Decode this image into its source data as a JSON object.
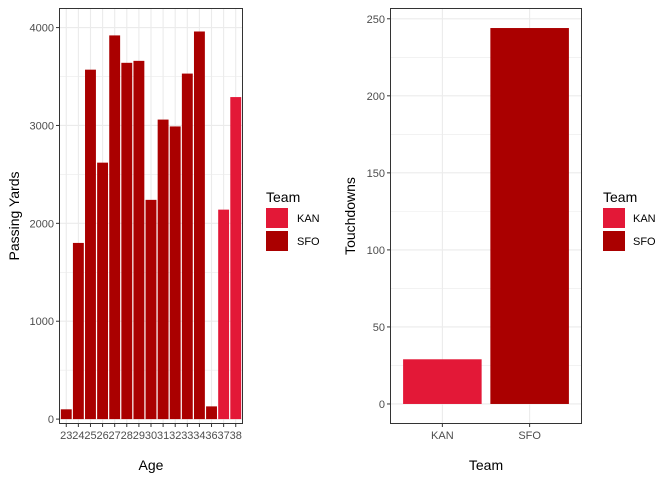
{
  "colors": {
    "KAN": "#E31837",
    "SFO": "#AA0000",
    "grid": "#ebebeb",
    "frame": "#333333",
    "tick_text": "#4d4d4d"
  },
  "chart_data": [
    {
      "type": "bar",
      "xlabel": "Age",
      "ylabel": "Passing Yards",
      "categories": [
        "23",
        "24",
        "25",
        "26",
        "27",
        "28",
        "29",
        "30",
        "31",
        "32",
        "33",
        "34",
        "36",
        "37",
        "38"
      ],
      "bars": [
        {
          "x": "23",
          "value": 100,
          "team": "SFO"
        },
        {
          "x": "24",
          "value": 1800,
          "team": "SFO"
        },
        {
          "x": "25",
          "value": 3570,
          "team": "SFO"
        },
        {
          "x": "26",
          "value": 2620,
          "team": "SFO"
        },
        {
          "x": "27",
          "value": 3920,
          "team": "SFO"
        },
        {
          "x": "28",
          "value": 3640,
          "team": "SFO"
        },
        {
          "x": "29",
          "value": 3660,
          "team": "SFO"
        },
        {
          "x": "30",
          "value": 2240,
          "team": "SFO"
        },
        {
          "x": "31",
          "value": 3060,
          "team": "SFO"
        },
        {
          "x": "32",
          "value": 2990,
          "team": "SFO"
        },
        {
          "x": "33",
          "value": 3530,
          "team": "SFO"
        },
        {
          "x": "34",
          "value": 3960,
          "team": "SFO"
        },
        {
          "x": "36",
          "value": 130,
          "team": "SFO"
        },
        {
          "x": "37",
          "value": 2140,
          "team": "KAN"
        },
        {
          "x": "38",
          "value": 3290,
          "team": "KAN"
        }
      ],
      "yticks": [
        0,
        1000,
        2000,
        3000,
        4000
      ],
      "ylim": [
        -50,
        4200
      ],
      "grid": true,
      "legend": {
        "title": "Team",
        "entries": [
          "KAN",
          "SFO"
        ],
        "position": "right"
      }
    },
    {
      "type": "bar",
      "xlabel": "Team",
      "ylabel": "Touchdowns",
      "categories": [
        "KAN",
        "SFO"
      ],
      "bars": [
        {
          "x": "KAN",
          "value": 29,
          "team": "KAN"
        },
        {
          "x": "SFO",
          "value": 244,
          "team": "SFO"
        }
      ],
      "yticks": [
        0,
        50,
        100,
        150,
        200,
        250
      ],
      "ylim": [
        -13,
        257
      ],
      "grid": true,
      "legend": {
        "title": "Team",
        "entries": [
          "KAN",
          "SFO"
        ],
        "position": "right"
      }
    }
  ]
}
